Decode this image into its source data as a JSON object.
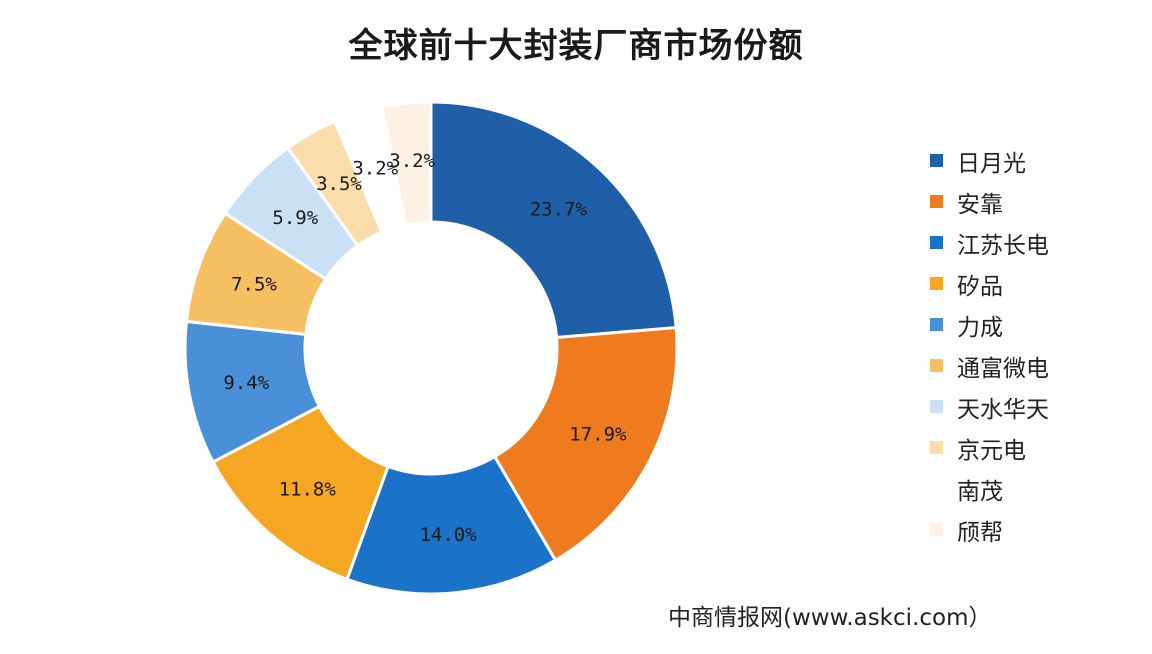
{
  "chart_data": {
    "type": "pie",
    "donut": true,
    "title": "全球前十大封装厂商市场份额",
    "categories": [
      "日月光",
      "安靠",
      "江苏长电",
      "矽品",
      "力成",
      "通富微电",
      "天水华天",
      "京元电",
      "南茂",
      "颀帮"
    ],
    "values": [
      23.7,
      17.9,
      14.0,
      11.8,
      9.4,
      7.5,
      5.9,
      3.5,
      3.2,
      3.2
    ],
    "data_labels": [
      "23.7%",
      "17.9%",
      "14.0%",
      "11.8%",
      "9.4%",
      "7.5%",
      "5.9%",
      "3.5%",
      "3.2%",
      "3.2%"
    ],
    "colors": [
      "#1f5fa8",
      "#f07b1f",
      "#1a73c8",
      "#f5a623",
      "#4a90d9",
      "#f5bf62",
      "#c9e0f5",
      "#fbdcab",
      "#ffffff",
      "#fdf0e4"
    ],
    "legend_position": "right"
  },
  "source": "中商情报网(www.askci.com）"
}
